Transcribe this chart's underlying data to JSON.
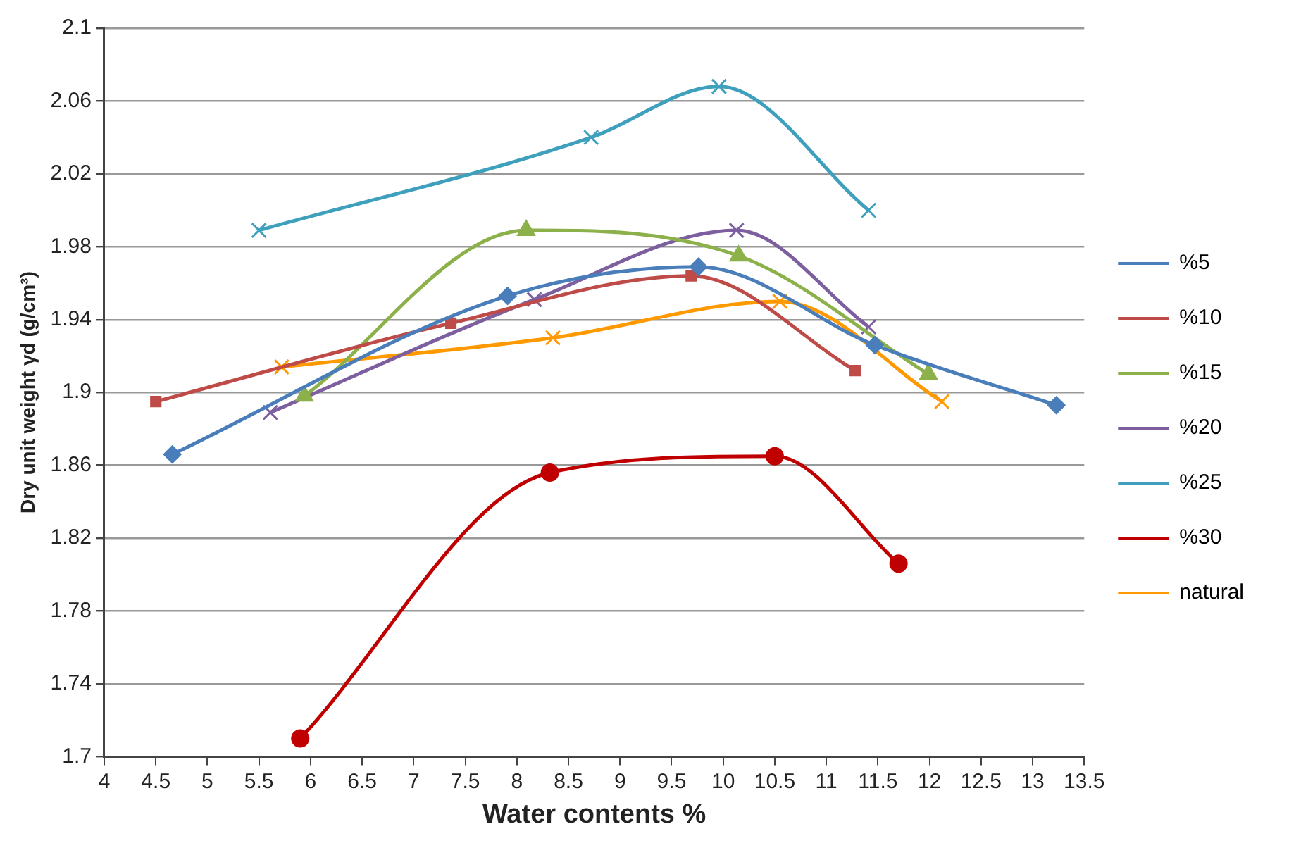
{
  "chart_data": {
    "type": "line",
    "xlabel": "Water contents %",
    "ylabel": "Dry unit weight γd (g/cm³)",
    "xlim": [
      4,
      13.5
    ],
    "xticks": [
      4,
      4.5,
      5,
      5.5,
      6,
      6.5,
      7,
      7.5,
      8,
      8.5,
      9,
      9.5,
      10,
      10.5,
      11,
      11.5,
      12,
      12.5,
      13,
      13.5
    ],
    "ylim": [
      1.7,
      2.1
    ],
    "yticks": [
      1.7,
      1.74,
      1.78,
      1.82,
      1.86,
      1.9,
      1.94,
      1.98,
      2.02,
      2.06,
      2.1
    ],
    "grid": "y",
    "legend": "right",
    "series": [
      {
        "name": "%5",
        "color": "#4a7ebb",
        "marker": "diamond",
        "x": [
          4.66,
          7.91,
          9.76,
          11.47,
          13.23
        ],
        "values": [
          1.866,
          1.953,
          1.969,
          1.926,
          1.893
        ]
      },
      {
        "name": "%10",
        "color": "#be4b48",
        "marker": "square",
        "x": [
          4.5,
          7.36,
          9.69,
          11.28
        ],
        "values": [
          1.895,
          1.938,
          1.964,
          1.912
        ]
      },
      {
        "name": "%15",
        "color": "#8cb04a",
        "marker": "triangle",
        "x": [
          5.94,
          8.09,
          10.15,
          11.99
        ],
        "values": [
          1.898,
          1.989,
          1.975,
          1.91
        ]
      },
      {
        "name": "%20",
        "color": "#7d5fa0",
        "marker": "cross",
        "x": [
          5.61,
          8.17,
          10.13,
          11.41
        ],
        "values": [
          1.889,
          1.951,
          1.989,
          1.936
        ]
      },
      {
        "name": "%25",
        "color": "#3fa0bd",
        "marker": "cross",
        "x": [
          5.5,
          8.72,
          9.96,
          11.41
        ],
        "values": [
          1.989,
          2.04,
          2.068,
          2.0
        ]
      },
      {
        "name": "%30",
        "color": "#c00000",
        "marker": "circle",
        "x": [
          5.9,
          8.32,
          10.5,
          11.7
        ],
        "values": [
          1.71,
          1.856,
          1.865,
          1.806
        ]
      },
      {
        "name": "natural",
        "color": "#ff9900",
        "marker": "cross",
        "x": [
          5.72,
          8.35,
          10.55,
          12.12
        ],
        "values": [
          1.914,
          1.93,
          1.95,
          1.895
        ]
      }
    ]
  }
}
